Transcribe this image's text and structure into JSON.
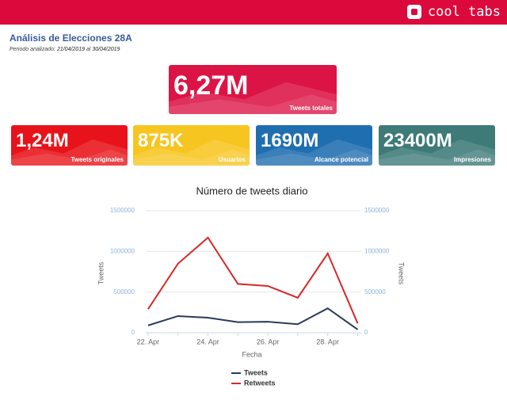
{
  "header": {
    "brand": "cool tabs"
  },
  "report": {
    "title": "Análisis de Elecciones 28A",
    "period_label": "Periodo analizado:",
    "period_start": "21/04/2019",
    "period_sep": "al",
    "period_end": "30/04/2019"
  },
  "kpis": {
    "main": {
      "value": "6,27M",
      "label": "Tweets totales",
      "color": "#dc1446"
    },
    "cards": [
      {
        "value": "1,24M",
        "label": "Tweets originales",
        "color": "#e8131a"
      },
      {
        "value": "875K",
        "label": "Usuarios",
        "color": "#f7c520"
      },
      {
        "value": "1690M",
        "label": "Alcance potencial",
        "color": "#1f6eb0"
      },
      {
        "value": "23400M",
        "label": "Impresiones",
        "color": "#3d7a78"
      }
    ]
  },
  "chart_data": {
    "type": "line",
    "title": "Número de tweets diario",
    "x_label": "Fecha",
    "y_label": "Tweets",
    "y2_label": "Tweets",
    "categories": [
      "22. Apr",
      null,
      "24. Apr",
      null,
      "26. Apr",
      null,
      "28. Apr",
      null
    ],
    "series": [
      {
        "name": "Tweets",
        "color": "#2b3a5a",
        "values": [
          90000,
          205000,
          185000,
          130000,
          135000,
          105000,
          300000,
          40000
        ]
      },
      {
        "name": "Retweets",
        "color": "#d62728",
        "values": [
          290000,
          850000,
          1170000,
          600000,
          575000,
          430000,
          975000,
          115000
        ]
      }
    ],
    "ylim": [
      0,
      1500000
    ],
    "yticks": [
      0,
      500000,
      1000000,
      1500000
    ],
    "y2lim": [
      0,
      1500000
    ],
    "y2ticks": [
      0,
      500000,
      1000000,
      1500000
    ],
    "grid": true,
    "legend": "bottom"
  }
}
